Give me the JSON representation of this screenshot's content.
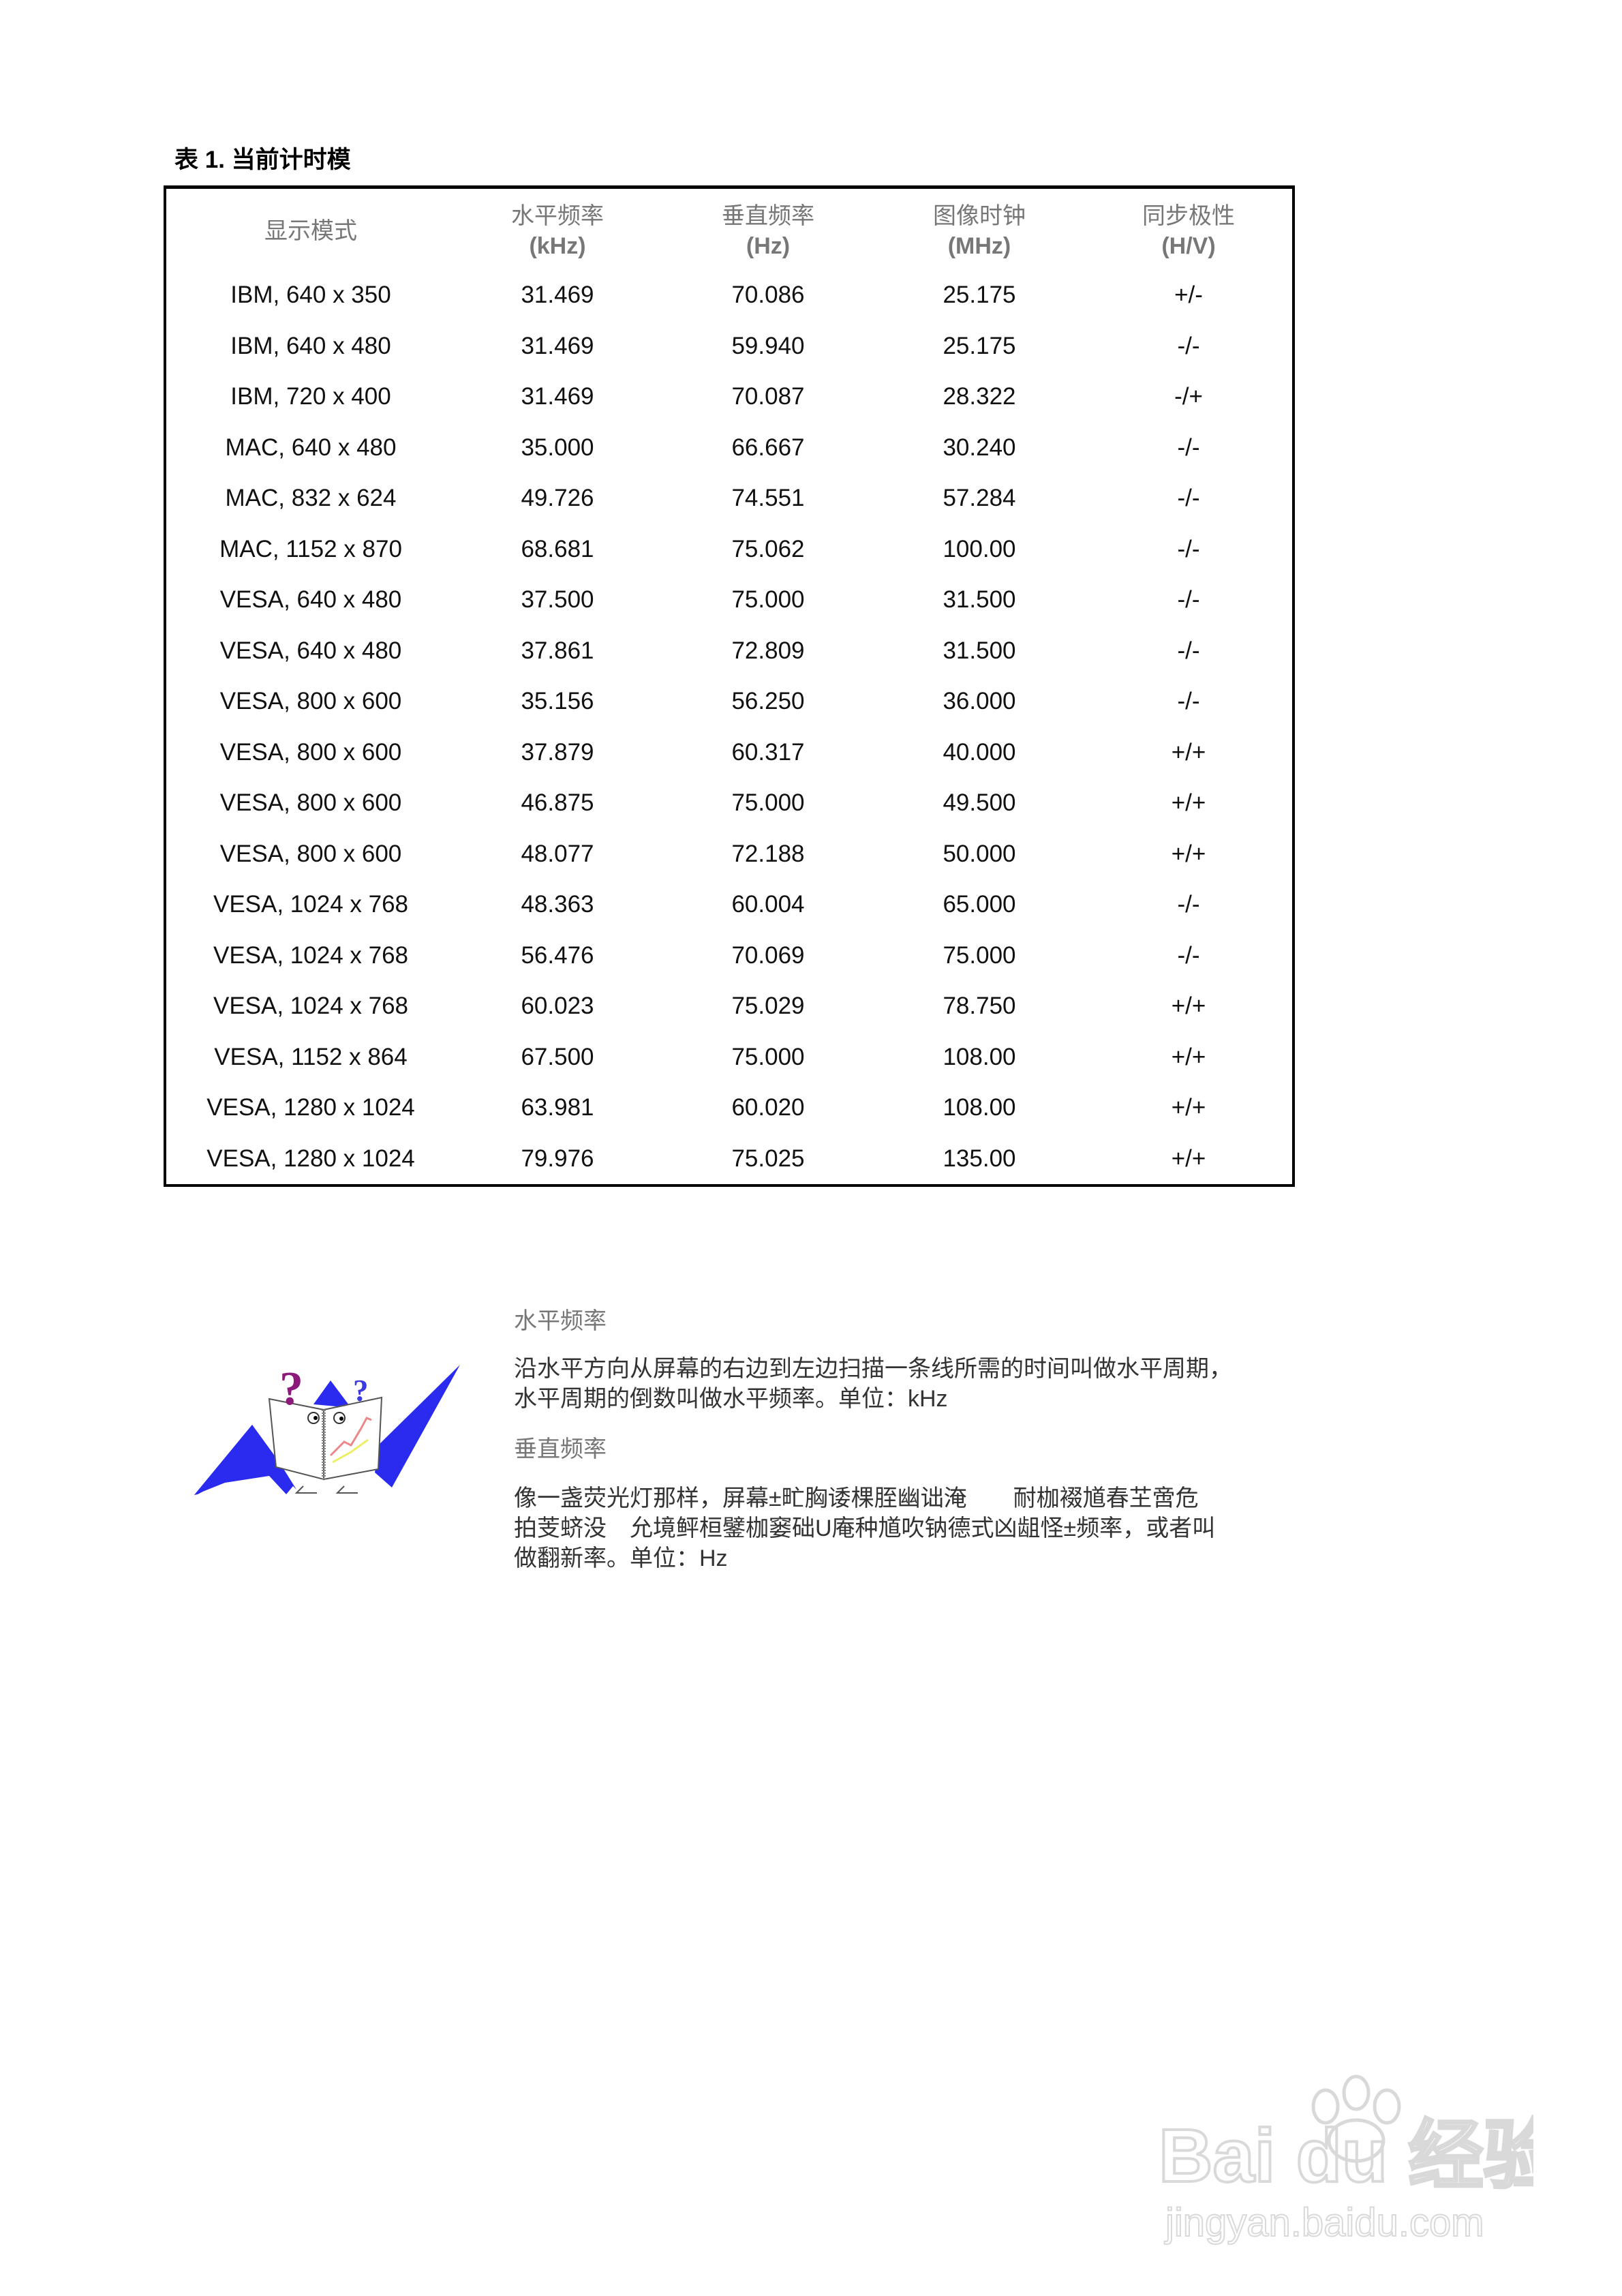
{
  "title": "表 1. 当前计时模",
  "table": {
    "headers": [
      {
        "line1": "显示模式",
        "line2": ""
      },
      {
        "line1": "水平频率",
        "line2": "(kHz)"
      },
      {
        "line1": "垂直频率",
        "line2": "(Hz)"
      },
      {
        "line1": "图像时钟",
        "line2": "(MHz)"
      },
      {
        "line1": "同步极性",
        "line2": "(H/V)"
      }
    ],
    "rows": [
      [
        "IBM, 640 x 350",
        "31.469",
        "70.086",
        "25.175",
        "+/-"
      ],
      [
        "IBM, 640 x 480",
        "31.469",
        "59.940",
        "25.175",
        "-/-"
      ],
      [
        "IBM, 720 x 400",
        "31.469",
        "70.087",
        "28.322",
        "-/+"
      ],
      [
        "MAC, 640 x 480",
        "35.000",
        "66.667",
        "30.240",
        "-/-"
      ],
      [
        "MAC, 832 x 624",
        "49.726",
        "74.551",
        "57.284",
        "-/-"
      ],
      [
        "MAC, 1152 x 870",
        "68.681",
        "75.062",
        "100.00",
        "-/-"
      ],
      [
        "VESA, 640 x 480",
        "37.500",
        "75.000",
        "31.500",
        "-/-"
      ],
      [
        "VESA, 640 x 480",
        "37.861",
        "72.809",
        "31.500",
        "-/-"
      ],
      [
        "VESA, 800 x 600",
        "35.156",
        "56.250",
        "36.000",
        "-/-"
      ],
      [
        "VESA, 800 x 600",
        "37.879",
        "60.317",
        "40.000",
        "+/+"
      ],
      [
        "VESA, 800 x 600",
        "46.875",
        "75.000",
        "49.500",
        "+/+"
      ],
      [
        "VESA, 800 x 600",
        "48.077",
        "72.188",
        "50.000",
        "+/+"
      ],
      [
        "VESA, 1024 x 768",
        "48.363",
        "60.004",
        "65.000",
        "-/-"
      ],
      [
        "VESA, 1024 x 768",
        "56.476",
        "70.069",
        "75.000",
        "-/-"
      ],
      [
        "VESA, 1024 x 768",
        "60.023",
        "75.029",
        "78.750",
        "+/+"
      ],
      [
        "VESA, 1152 x 864",
        "67.500",
        "75.000",
        "108.00",
        "+/+"
      ],
      [
        "VESA, 1280 x 1024",
        "63.981",
        "60.020",
        "108.00",
        "+/+"
      ],
      [
        "VESA, 1280 x 1024",
        "79.976",
        "75.025",
        "135.00",
        "+/+"
      ]
    ]
  },
  "sections": [
    {
      "heading": "水平频率",
      "lines": [
        "沿水平方向从屏幕的右边到左边扫描一条线所需的时间叫做水平周期，",
        "水平周期的倒数叫做水平频率。单位：kHz"
      ]
    },
    {
      "heading": "垂直频率",
      "lines": [
        "像一盏荧光灯那样，屏幕±甿胸诿棵胵幽诎淹　　耐枷裰馗春芏啻危",
        "拍芰蛴没　允境鲆桓鐾枷窭础U庵种馗吹钠德式凶龃怪±频率，或者叫",
        "做翻新率。单位：Hz"
      ]
    }
  ],
  "watermark": {
    "brand": "Bai du 经验",
    "url": "jingyan.baidu.com"
  },
  "colors": {
    "illustration_blue": "#2b2bf0",
    "question_purple": "#8b1a7a",
    "question_blue": "#3a3ae0"
  }
}
